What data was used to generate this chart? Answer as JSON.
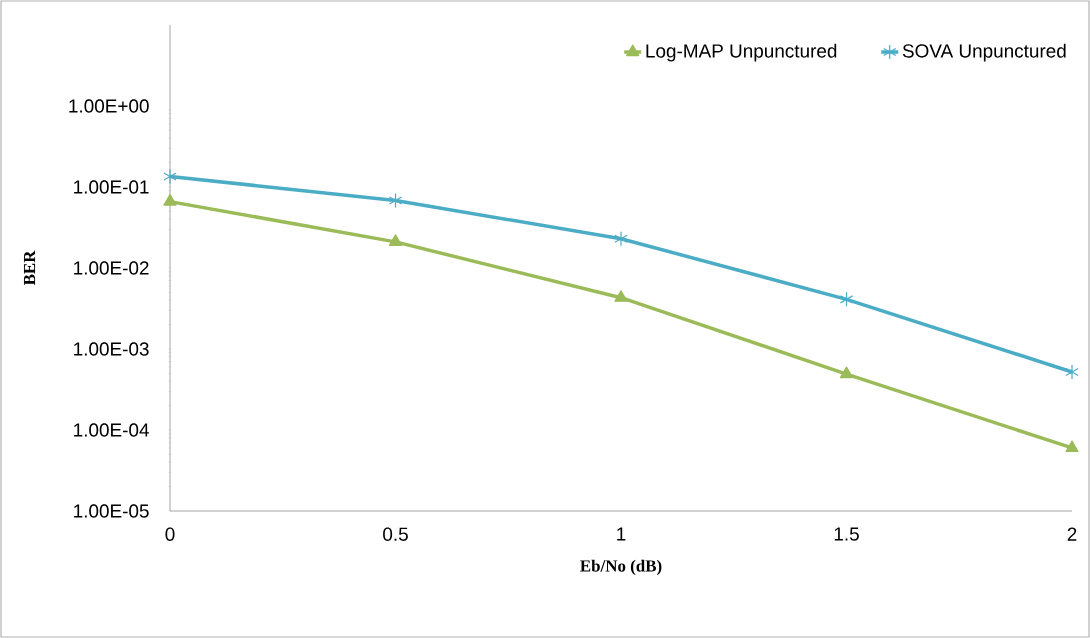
{
  "chart_data": {
    "type": "line",
    "xlabel": "Eb/No (dB)",
    "ylabel": "BER",
    "log": "y",
    "x": [
      0,
      0.5,
      1,
      1.5,
      2
    ],
    "xlim": [
      0,
      2
    ],
    "xticks": [
      0,
      0.5,
      1,
      1.5,
      2
    ],
    "ylim": [
      1e-05,
      10
    ],
    "yticks": [
      {
        "value": 1e-05,
        "label": "1.00E-05"
      },
      {
        "value": 0.0001,
        "label": "1.00E-04"
      },
      {
        "value": 0.001,
        "label": "1.00E-03"
      },
      {
        "value": 0.01,
        "label": "1.00E-02"
      },
      {
        "value": 0.1,
        "label": "1.00E-01"
      },
      {
        "value": 1,
        "label": "1.00E+00"
      }
    ],
    "grid": false,
    "legend": "top right",
    "line_style": "solid",
    "series": [
      {
        "name": "Log-MAP Unpunctured",
        "color": "#9bbb59",
        "marker": "triangle",
        "values": [
          0.066,
          0.021,
          0.0043,
          0.00049,
          6e-05
        ]
      },
      {
        "name": "SOVA Unpunctured",
        "color": "#4bacc6",
        "marker": "cross",
        "values": [
          0.135,
          0.068,
          0.023,
          0.0041,
          0.00052
        ]
      }
    ]
  }
}
